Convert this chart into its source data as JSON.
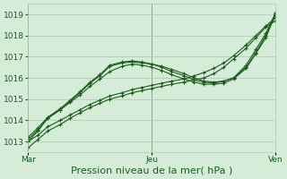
{
  "bg_color": "#d5edd8",
  "plot_bg_color": "#d5edd8",
  "grid_color": "#aacaaa",
  "line_color": "#1a5c1a",
  "xlabel": "Pression niveau de la mer( hPa )",
  "xtick_labels": [
    "Mar",
    "Jeu",
    "Ven"
  ],
  "xtick_positions": [
    0.0,
    0.5,
    1.0
  ],
  "ylim": [
    1012.5,
    1019.5
  ],
  "yticks": [
    1013,
    1014,
    1015,
    1016,
    1017,
    1018,
    1019
  ],
  "xlabel_fontsize": 8,
  "tick_fontsize": 6.5,
  "series": [
    {
      "x": [
        0.0,
        0.04,
        0.08,
        0.13,
        0.17,
        0.21,
        0.25,
        0.29,
        0.33,
        0.38,
        0.42,
        0.46,
        0.5,
        0.54,
        0.58,
        0.63,
        0.67,
        0.71,
        0.75,
        0.79,
        0.83,
        0.88,
        0.92,
        0.96,
        1.0
      ],
      "y": [
        1012.7,
        1013.1,
        1013.5,
        1013.8,
        1014.1,
        1014.35,
        1014.6,
        1014.8,
        1015.0,
        1015.15,
        1015.3,
        1015.4,
        1015.5,
        1015.6,
        1015.7,
        1015.8,
        1015.9,
        1016.0,
        1016.2,
        1016.5,
        1016.9,
        1017.4,
        1017.9,
        1018.4,
        1018.7
      ]
    },
    {
      "x": [
        0.0,
        0.04,
        0.08,
        0.13,
        0.17,
        0.21,
        0.25,
        0.29,
        0.33,
        0.38,
        0.42,
        0.46,
        0.5,
        0.54,
        0.58,
        0.63,
        0.67,
        0.71,
        0.75,
        0.79,
        0.83,
        0.88,
        0.92,
        0.96,
        1.0
      ],
      "y": [
        1013.0,
        1013.3,
        1013.7,
        1014.0,
        1014.25,
        1014.5,
        1014.75,
        1014.95,
        1015.15,
        1015.3,
        1015.45,
        1015.55,
        1015.65,
        1015.75,
        1015.85,
        1015.95,
        1016.1,
        1016.25,
        1016.45,
        1016.7,
        1017.05,
        1017.55,
        1018.0,
        1018.45,
        1018.85
      ]
    },
    {
      "x": [
        0.0,
        0.04,
        0.08,
        0.13,
        0.17,
        0.21,
        0.25,
        0.29,
        0.33,
        0.38,
        0.42,
        0.46,
        0.5,
        0.54,
        0.58,
        0.63,
        0.67,
        0.71,
        0.75,
        0.79,
        0.83,
        0.88,
        0.92,
        0.96,
        1.0
      ],
      "y": [
        1013.0,
        1013.5,
        1014.1,
        1014.5,
        1014.9,
        1015.3,
        1015.75,
        1016.1,
        1016.55,
        1016.7,
        1016.75,
        1016.7,
        1016.65,
        1016.55,
        1016.4,
        1016.2,
        1016.0,
        1015.85,
        1015.8,
        1015.85,
        1016.0,
        1016.5,
        1017.2,
        1018.0,
        1019.0
      ]
    },
    {
      "x": [
        0.0,
        0.04,
        0.08,
        0.13,
        0.17,
        0.21,
        0.25,
        0.29,
        0.33,
        0.38,
        0.42,
        0.46,
        0.5,
        0.54,
        0.58,
        0.63,
        0.67,
        0.71,
        0.75,
        0.79,
        0.83,
        0.88,
        0.92,
        0.96,
        1.0
      ],
      "y": [
        1013.1,
        1013.55,
        1014.1,
        1014.5,
        1014.85,
        1015.2,
        1015.6,
        1015.95,
        1016.3,
        1016.55,
        1016.65,
        1016.6,
        1016.5,
        1016.35,
        1016.15,
        1015.95,
        1015.8,
        1015.7,
        1015.7,
        1015.75,
        1015.95,
        1016.45,
        1017.15,
        1017.9,
        1019.05
      ]
    },
    {
      "x": [
        0.0,
        0.04,
        0.08,
        0.13,
        0.17,
        0.21,
        0.25,
        0.29,
        0.33,
        0.38,
        0.42,
        0.46,
        0.5,
        0.54,
        0.58,
        0.63,
        0.67,
        0.71,
        0.75,
        0.79,
        0.83,
        0.88,
        0.92,
        0.96,
        1.0
      ],
      "y": [
        1013.2,
        1013.65,
        1014.15,
        1014.55,
        1014.95,
        1015.35,
        1015.8,
        1016.15,
        1016.6,
        1016.75,
        1016.8,
        1016.75,
        1016.65,
        1016.5,
        1016.3,
        1016.1,
        1015.9,
        1015.8,
        1015.75,
        1015.85,
        1016.0,
        1016.6,
        1017.35,
        1018.1,
        1019.1
      ]
    }
  ],
  "vlines": [
    0.0,
    0.5,
    1.0
  ]
}
